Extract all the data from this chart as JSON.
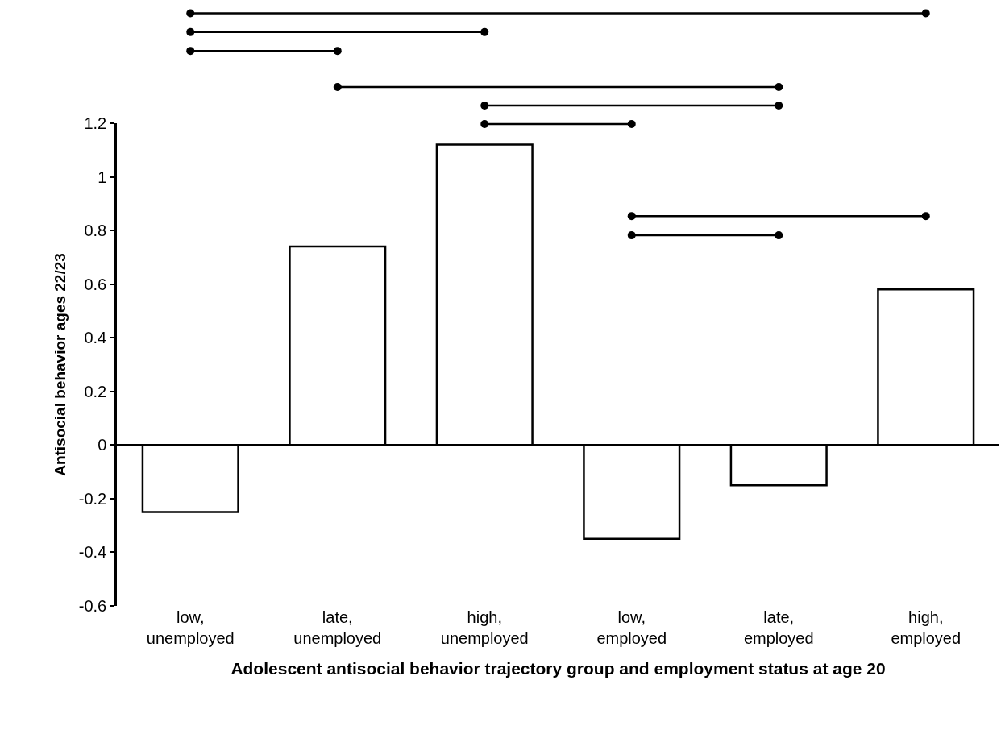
{
  "chart_data": {
    "type": "bar",
    "xlabel": "Adolescent antisocial behavior trajectory group and employment status at age 20",
    "ylabel": "Antisocial behavior ages 22/23",
    "categories": [
      "low, unemployed",
      "late, unemployed",
      "high, unemployed",
      "low, employed",
      "late, employed",
      "high, employed"
    ],
    "values": [
      -0.25,
      0.74,
      1.12,
      -0.35,
      -0.15,
      0.58
    ],
    "color": "#ffffff",
    "ylim": [
      -0.6,
      1.2
    ],
    "yticks": [
      {
        "value": -0.6,
        "label": "-0.6"
      },
      {
        "value": -0.4,
        "label": "-0.4"
      },
      {
        "value": -0.2,
        "label": "-0.2"
      },
      0,
      0.2,
      0.4,
      0.6,
      0.8,
      1,
      1.2
    ],
    "legend": false
  }
}
